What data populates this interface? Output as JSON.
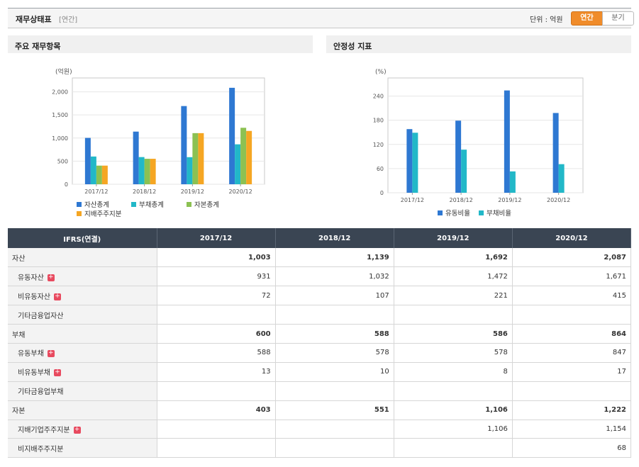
{
  "header": {
    "title": "재무상태표",
    "subtitle": "[연간]",
    "unit": "단위 : 억원",
    "tabs": [
      "연간",
      "분기"
    ]
  },
  "panels": {
    "left_title": "주요 재무항목",
    "right_title": "안정성 지표"
  },
  "chart_data": [
    {
      "type": "bar",
      "title": "주요 재무항목",
      "unit_label": "(억원)",
      "categories": [
        "2017/12",
        "2018/12",
        "2019/12",
        "2020/12"
      ],
      "ylim": [
        0,
        2300
      ],
      "yticks": [
        0,
        500,
        1000,
        1500,
        2000
      ],
      "ytick_labels": [
        "0",
        "500",
        "1,000",
        "1,500",
        "2,000"
      ],
      "grid": true,
      "legend_position": "bottom",
      "series": [
        {
          "name": "자산총계",
          "color": "#2e78d2",
          "values": [
            1003,
            1139,
            1692,
            2087
          ]
        },
        {
          "name": "부채총계",
          "color": "#22b8c8",
          "values": [
            600,
            588,
            586,
            864
          ]
        },
        {
          "name": "자본총계",
          "color": "#8cc152",
          "values": [
            403,
            551,
            1106,
            1222
          ]
        },
        {
          "name": "지배주주지분",
          "color": "#f5a623",
          "values": [
            403,
            551,
            1106,
            1154
          ]
        }
      ]
    },
    {
      "type": "bar",
      "title": "안정성 지표",
      "unit_label": "(%)",
      "categories": [
        "2017/12",
        "2018/12",
        "2019/12",
        "2020/12"
      ],
      "ylim": [
        0,
        285
      ],
      "yticks": [
        0,
        60,
        120,
        180,
        240
      ],
      "ytick_labels": [
        "0",
        "60",
        "120",
        "180",
        "240"
      ],
      "grid": true,
      "legend_position": "bottom",
      "series": [
        {
          "name": "유동비율",
          "color": "#2e78d2",
          "values": [
            158,
            179,
            254,
            198
          ]
        },
        {
          "name": "부채비율",
          "color": "#22b8c8",
          "values": [
            149,
            107,
            53,
            71
          ]
        }
      ]
    }
  ],
  "table": {
    "header": [
      "IFRS(연결)",
      "2017/12",
      "2018/12",
      "2019/12",
      "2020/12"
    ],
    "rows": [
      {
        "label": "자산",
        "major": true,
        "plus": false,
        "values": [
          "1,003",
          "1,139",
          "1,692",
          "2,087"
        ]
      },
      {
        "label": "유동자산",
        "major": false,
        "plus": true,
        "values": [
          "931",
          "1,032",
          "1,472",
          "1,671"
        ]
      },
      {
        "label": "비유동자산",
        "major": false,
        "plus": true,
        "values": [
          "72",
          "107",
          "221",
          "415"
        ]
      },
      {
        "label": "기타금융업자산",
        "major": false,
        "plus": false,
        "values": [
          "",
          "",
          "",
          ""
        ]
      },
      {
        "label": "부채",
        "major": true,
        "plus": false,
        "values": [
          "600",
          "588",
          "586",
          "864"
        ]
      },
      {
        "label": "유동부채",
        "major": false,
        "plus": true,
        "values": [
          "588",
          "578",
          "578",
          "847"
        ]
      },
      {
        "label": "비유동부채",
        "major": false,
        "plus": true,
        "values": [
          "13",
          "10",
          "8",
          "17"
        ]
      },
      {
        "label": "기타금융업부채",
        "major": false,
        "plus": false,
        "values": [
          "",
          "",
          "",
          ""
        ]
      },
      {
        "label": "자본",
        "major": true,
        "plus": false,
        "values": [
          "403",
          "551",
          "1,106",
          "1,222"
        ]
      },
      {
        "label": "지배기업주주지분",
        "major": false,
        "plus": true,
        "values": [
          "",
          "",
          "1,106",
          "1,154"
        ]
      },
      {
        "label": "비지배주주지분",
        "major": false,
        "plus": false,
        "values": [
          "",
          "",
          "",
          "68"
        ]
      }
    ]
  }
}
